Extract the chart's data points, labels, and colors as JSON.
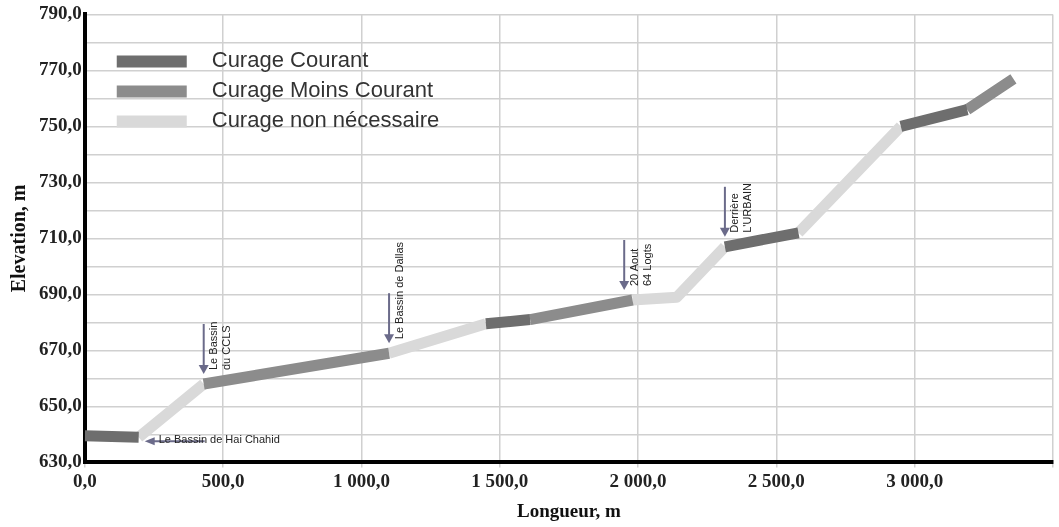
{
  "chart_data": {
    "type": "line",
    "xlabel": "Longueur, m",
    "ylabel": "Elevation, m",
    "xlim": [
      0,
      3500
    ],
    "xticks": [
      {
        "value": 0,
        "label": "0,0"
      },
      {
        "value": 500,
        "label": "500,0"
      },
      {
        "value": 1000,
        "label": "1 000,0"
      },
      {
        "value": 1500,
        "label": "1 500,0"
      },
      {
        "value": 2000,
        "label": "2 000,0"
      },
      {
        "value": 2500,
        "label": "2 500,0"
      },
      {
        "value": 3000,
        "label": "3 000,0"
      },
      {
        "value": 3500,
        "label": null
      }
    ],
    "ylim": [
      630,
      790
    ],
    "yticks": [
      {
        "value": 630,
        "label": "630,0"
      },
      {
        "value": 640,
        "label": null
      },
      {
        "value": 650,
        "label": "650,0"
      },
      {
        "value": 660,
        "label": null
      },
      {
        "value": 670,
        "label": "670,0"
      },
      {
        "value": 680,
        "label": null
      },
      {
        "value": 690,
        "label": "690,0"
      },
      {
        "value": 700,
        "label": null
      },
      {
        "value": 710,
        "label": "710,0"
      },
      {
        "value": 720,
        "label": null
      },
      {
        "value": 730,
        "label": "730,0"
      },
      {
        "value": 740,
        "label": null
      },
      {
        "value": 750,
        "label": "750,0"
      },
      {
        "value": 760,
        "label": null
      },
      {
        "value": 770,
        "label": "770,0"
      },
      {
        "value": 780,
        "label": null
      },
      {
        "value": 790,
        "label": "790,0"
      }
    ],
    "grid": true,
    "legend": "top left",
    "marker": "none",
    "line_style": "solid",
    "series": [
      {
        "name": "Curage Courant",
        "color": "#6e6e6e",
        "x": [
          0,
          195,
          300,
          1450,
          1610,
          2000,
          2314,
          2580,
          2800,
          2950,
          3190
        ],
        "values": [
          639.5,
          639,
          null,
          679.5,
          681,
          null,
          707,
          712,
          null,
          750,
          756
        ]
      },
      {
        "name": "Curage Moins Courant",
        "color": "#8c8c8c",
        "x": [
          430,
          1100,
          1300,
          1610,
          1980,
          2500,
          3190,
          3357
        ],
        "values": [
          658,
          669,
          null,
          681,
          688,
          null,
          756,
          767
        ]
      },
      {
        "name": "Curage non nécessaire",
        "color": "#d9d9d9",
        "x": [
          195,
          430,
          800,
          1100,
          1450,
          1700,
          1980,
          2140,
          2314,
          2450,
          2580,
          2950
        ],
        "values": [
          639,
          658,
          null,
          669,
          679.5,
          null,
          688,
          689,
          707,
          null,
          712,
          750
        ]
      }
    ],
    "annotations": [
      {
        "text": "Le Bassin de Hai Chahid",
        "x": 195,
        "y": 639
      },
      {
        "text": "Le Bassin\ndu CCLS",
        "x": 430,
        "y": 658
      },
      {
        "text": "Le Bassin de Dallas",
        "x": 1100,
        "y": 669
      },
      {
        "text": "20 Aout\n64 Logts",
        "x": 1950,
        "y": 688
      },
      {
        "text": "Derrière\nL'URBAIN",
        "x": 2314,
        "y": 707
      }
    ]
  }
}
